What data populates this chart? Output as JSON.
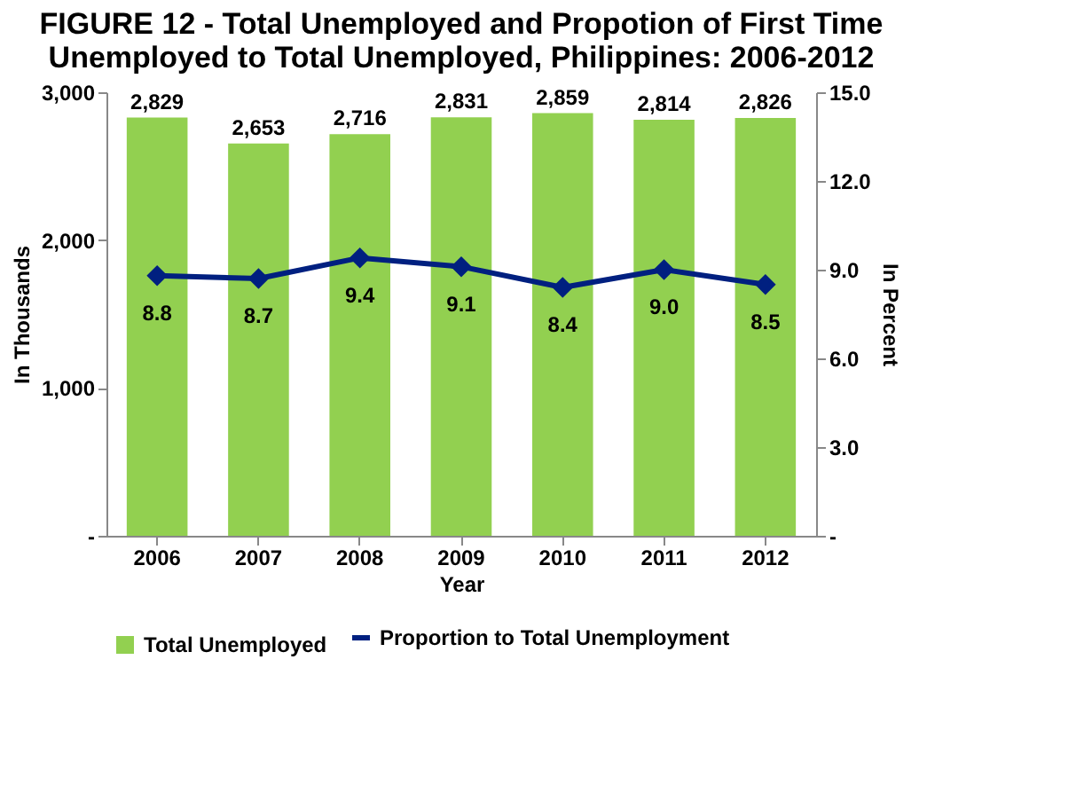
{
  "chart_data": {
    "type": "bar",
    "title": [
      "FIGURE 12 - Total Unemployed and Propotion of First Time",
      "Unemployed to Total Unemployed, Philippines:  2006-2012"
    ],
    "xlabel": "Year",
    "ylabel": "In  Thousands",
    "y2label": "In Percent",
    "categories": [
      "2006",
      "2007",
      "2008",
      "2009",
      "2010",
      "2011",
      "2012"
    ],
    "series": [
      {
        "name": "Total Unemployed",
        "color": "#92d050",
        "values": [
          2829,
          2653,
          2716,
          2831,
          2859,
          2814,
          2826
        ],
        "value_labels": [
          "2,829",
          "2,653",
          "2,716",
          "2,831",
          "2,859",
          "2,814",
          "2,826"
        ]
      },
      {
        "name": "Proportion  to Total Unemployment",
        "type": "line",
        "axis": "y2",
        "color": "#002080",
        "marker": "diamond",
        "line_style": "solid",
        "values": [
          8.8,
          8.7,
          9.4,
          9.1,
          8.4,
          9.0,
          8.5
        ],
        "value_labels": [
          "8.8",
          "8.7",
          "9.4",
          "9.1",
          "8.4",
          "9.0",
          "8.5"
        ]
      }
    ],
    "ylim": [
      0,
      3000
    ],
    "yticks": [
      {
        "value": 0,
        "label": "-"
      },
      {
        "value": 1000,
        "label": "1,000"
      },
      {
        "value": 2000,
        "label": "2,000"
      },
      {
        "value": 3000,
        "label": "3,000"
      }
    ],
    "y2lim": [
      0,
      15
    ],
    "y2ticks": [
      {
        "value": 0,
        "label": "-"
      },
      {
        "value": 3,
        "label": "3.0"
      },
      {
        "value": 6,
        "label": "6.0"
      },
      {
        "value": 9,
        "label": "9.0"
      },
      {
        "value": 12,
        "label": "12.0"
      },
      {
        "value": 15,
        "label": "15.0"
      }
    ],
    "grid": false,
    "legend": "bottom"
  }
}
